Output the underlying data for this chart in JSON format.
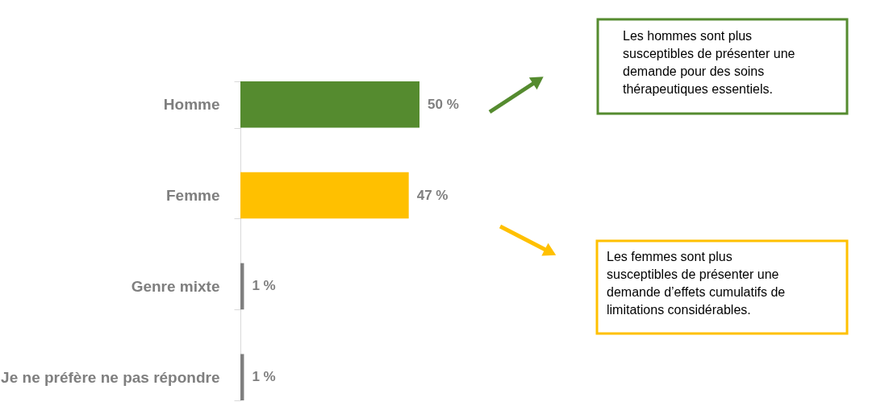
{
  "chart_data": {
    "type": "bar",
    "orientation": "horizontal",
    "categories": [
      "Homme",
      "Femme",
      "Genre mixte",
      "Je ne préfère ne pas répondre"
    ],
    "values": [
      50,
      47,
      1,
      1
    ],
    "colors": [
      "#558b2f",
      "#ffc000",
      "#7f7f7f",
      "#7f7f7f"
    ],
    "value_labels": [
      "50 %",
      "47 %",
      "1 %",
      "1 %"
    ],
    "annotations": [
      "Les hommes sont plus\nsusceptibles de présenter une\ndemande pour des soins\nthérapeutiques essentiels.",
      "Les femmes sont plus\nsusceptibles de présenter une\ndemande d’effets cumulatifs de\nlimitations considérables."
    ],
    "tick_labels": "y",
    "grid": false
  }
}
